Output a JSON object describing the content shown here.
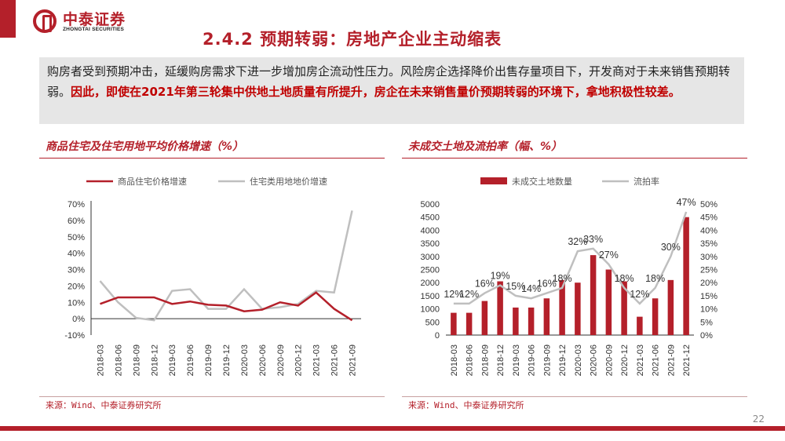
{
  "header": {
    "logo_cn": "中泰证券",
    "logo_en": "ZHONGTAI SECURITIES",
    "title": "2.4.2 预期转弱：房地产企业主动缩表"
  },
  "summary": {
    "part1": "购房者受到预期冲击，延缓购房需求下进一步增加房企流动性压力。风险房企选择降价出售存量项目下，开发商对于未来销售预期转弱。",
    "part2": "因此，即使在2021年第三轮集中供地土地质量有所提升，房企在未来销售量价预期转弱的环境下，拿地积极性较差。"
  },
  "footer": {
    "page": "22"
  },
  "chart_data": [
    {
      "type": "line",
      "title": "商品住宅及住宅用地平均价格增速（%）",
      "source": "来源：Wind、中泰证券研究所",
      "x": [
        "2018-03",
        "2018-06",
        "2018-09",
        "2018-12",
        "2019-03",
        "2019-06",
        "2019-09",
        "2019-12",
        "2020-03",
        "2020-06",
        "2020-09",
        "2020-12",
        "2021-03",
        "2021-06",
        "2021-09"
      ],
      "ylim": [
        -10,
        70
      ],
      "yticks": [
        "70%",
        "60%",
        "50%",
        "40%",
        "30%",
        "20%",
        "10%",
        "0%",
        "-10%"
      ],
      "legend_position": "top",
      "series": [
        {
          "name": "商品住宅价格增速",
          "color": "#b4202a",
          "values": [
            9,
            13,
            13,
            13,
            9,
            10.5,
            8.5,
            8,
            4.5,
            5.5,
            10,
            8,
            16,
            6,
            -1
          ]
        },
        {
          "name": "住宅类用地地价增速",
          "color": "#bfbfbf",
          "values": [
            23,
            10,
            0.5,
            -1,
            17,
            18,
            6,
            6,
            18,
            6,
            7,
            9,
            17,
            16,
            66
          ]
        }
      ]
    },
    {
      "type": "bar+line",
      "title": "未成交土地及流拍率（幅、%）",
      "source": "来源：Wind、中泰证券研究所",
      "x": [
        "2018-03",
        "2018-06",
        "2018-09",
        "2018-12",
        "2019-03",
        "2019-06",
        "2019-09",
        "2019-12",
        "2020-03",
        "2020-06",
        "2020-09",
        "2020-12",
        "2021-03",
        "2021-06",
        "2021-09",
        "2021-12"
      ],
      "ylim": [
        0,
        5000
      ],
      "yticks": [
        "5000",
        "4500",
        "4000",
        "3500",
        "3000",
        "2500",
        "2000",
        "1500",
        "1000",
        "500",
        "0"
      ],
      "y2lim": [
        0,
        50
      ],
      "y2ticks": [
        "50%",
        "45%",
        "40%",
        "35%",
        "30%",
        "25%",
        "20%",
        "15%",
        "10%",
        "5%",
        "0%"
      ],
      "legend_position": "top",
      "bars": {
        "name": "未成交土地数量",
        "color": "#b4202a",
        "values": [
          850,
          850,
          1300,
          2050,
          1050,
          1050,
          1400,
          2100,
          2000,
          3050,
          2500,
          2050,
          700,
          1400,
          2100,
          4500
        ]
      },
      "line": {
        "name": "流拍率",
        "color": "#bfbfbf",
        "values": [
          12,
          12,
          16,
          19,
          15,
          14,
          16,
          18,
          32,
          33,
          27,
          18,
          12,
          18,
          30,
          47
        ]
      },
      "data_labels": [
        "12%",
        "12%",
        "16%",
        "19%",
        "15%",
        "14%",
        "16%",
        "18%",
        "32%",
        "33%",
        "27%",
        "18%",
        "12%",
        "18%",
        "30%",
        "47%"
      ]
    }
  ]
}
